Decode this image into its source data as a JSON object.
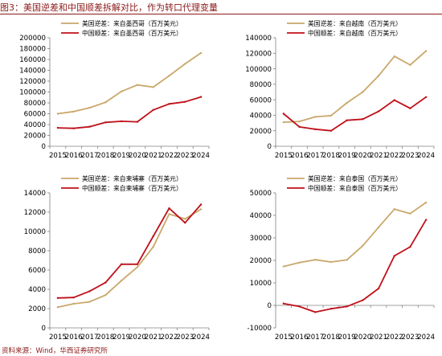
{
  "figure": {
    "title": "图3：美国逆差和中国顺差拆解对比，作为转口代理变量",
    "source": "资料来源：Wind，华西证券研究所"
  },
  "colors": {
    "us": "#c9a86a",
    "cn": "#c0101a",
    "text": "#8b1a1a",
    "axis": "#808080"
  },
  "chart_data": [
    {
      "type": "line",
      "categories": [
        "2015",
        "2016",
        "2017",
        "2018",
        "2019",
        "2020",
        "2021",
        "2022",
        "2023",
        "2024"
      ],
      "ylim": [
        0,
        200000
      ],
      "yticks": [
        "0",
        "20000",
        "40000",
        "60000",
        "80000",
        "100000",
        "120000",
        "140000",
        "160000",
        "180000",
        "200000"
      ],
      "grid": false,
      "legend_position": "top-left",
      "series": [
        {
          "name": "美国逆差：来自墨西哥（百万美元）",
          "color": "#c9a86a",
          "values": [
            60000,
            64000,
            71000,
            81000,
            101000,
            113000,
            109000,
            130000,
            152000,
            172000
          ]
        },
        {
          "name": "中国顺差：来自墨西哥（百万美元）",
          "color": "#c0101a",
          "values": [
            34000,
            33000,
            36000,
            44000,
            46000,
            45000,
            67000,
            78000,
            82000,
            91000
          ]
        }
      ]
    },
    {
      "type": "line",
      "categories": [
        "2015",
        "2016",
        "2017",
        "2018",
        "2019",
        "2020",
        "2021",
        "2022",
        "2023",
        "2024"
      ],
      "ylim": [
        0,
        140000
      ],
      "yticks": [
        "0",
        "20000",
        "40000",
        "60000",
        "80000",
        "100000",
        "120000",
        "140000"
      ],
      "grid": false,
      "legend_position": "top-left",
      "series": [
        {
          "name": "美国逆差：来自越南（百万美元）",
          "color": "#c9a86a",
          "values": [
            31000,
            32000,
            38000,
            39500,
            56000,
            70000,
            91000,
            116000,
            105000,
            123000
          ]
        },
        {
          "name": "中国顺差：来自越南（百万美元）",
          "color": "#c0101a",
          "values": [
            42000,
            25000,
            22000,
            20000,
            33500,
            35000,
            45000,
            59500,
            49000,
            63500
          ]
        }
      ]
    },
    {
      "type": "line",
      "categories": [
        "2015",
        "2016",
        "2017",
        "2018",
        "2019",
        "2020",
        "2021",
        "2022",
        "2023",
        "2024"
      ],
      "ylim": [
        0,
        14000
      ],
      "yticks": [
        "0",
        "2000",
        "4000",
        "6000",
        "8000",
        "10000",
        "12000",
        "14000"
      ],
      "grid": false,
      "legend_position": "top-left",
      "series": [
        {
          "name": "美国逆差：来自柬埔寨（百万美元）",
          "color": "#c9a86a",
          "values": [
            2150,
            2500,
            2700,
            3400,
            4900,
            6300,
            8400,
            11800,
            11300,
            12300
          ]
        },
        {
          "name": "中国顺差：来自柬埔寨（百万美元）",
          "color": "#c0101a",
          "values": [
            3100,
            3150,
            3800,
            4700,
            6600,
            6600,
            9500,
            12400,
            10900,
            12800
          ]
        }
      ]
    },
    {
      "type": "line",
      "categories": [
        "2015",
        "2016",
        "2017",
        "2018",
        "2019",
        "2020",
        "2021",
        "2022",
        "2023",
        "2024"
      ],
      "ylim": [
        -10000,
        50000
      ],
      "yticks": [
        "-10000",
        "0",
        "10000",
        "20000",
        "30000",
        "40000",
        "50000"
      ],
      "grid": false,
      "legend_position": "top-left",
      "series": [
        {
          "name": "美国逆差：来自泰国（百万美元）",
          "color": "#c9a86a",
          "values": [
            17300,
            19000,
            20300,
            19300,
            20200,
            26500,
            34700,
            42800,
            40800,
            45700
          ]
        },
        {
          "name": "中国顺差：来自泰国（百万美元）",
          "color": "#c0101a",
          "values": [
            800,
            -500,
            -3000,
            -1500,
            -500,
            2300,
            7500,
            22000,
            26000,
            38000
          ]
        }
      ]
    }
  ]
}
